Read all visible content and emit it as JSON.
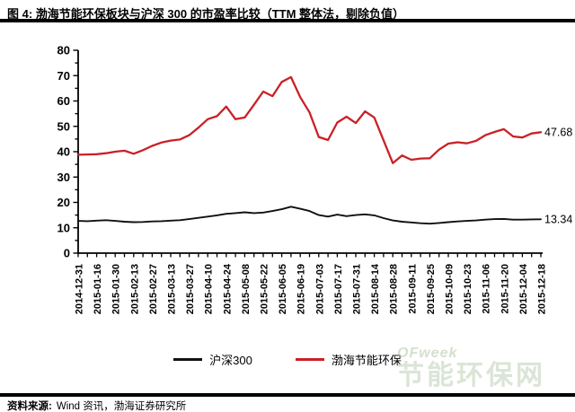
{
  "figure": {
    "title": "图 4: 渤海节能环保板块与沪深 300 的市盈率比较（TTM 整体法，剔除负值）",
    "source_label": "资料来源:",
    "source_text": "Wind 资讯，渤海证券研究所"
  },
  "watermark": {
    "brand": "OFweek",
    "site": "节能环保网"
  },
  "legend": [
    {
      "label": "沪深300",
      "color": "#111111"
    },
    {
      "label": "渤海节能环保",
      "color": "#cb2026"
    }
  ],
  "end_labels": {
    "bohai": "47.68",
    "csi300": "13.34"
  },
  "colors": {
    "axis": "#000000",
    "csi300": "#111111",
    "bohai": "#cb2026"
  },
  "chart_data": {
    "type": "line",
    "title": "渤海节能环保板块与沪深300的市盈率比较（TTM整体法，剔除负值）",
    "ylim": [
      0,
      80
    ],
    "y_ticks": [
      0,
      10,
      20,
      30,
      40,
      50,
      60,
      70,
      80
    ],
    "grid": false,
    "legend_position": "bottom",
    "x": [
      "2014-12-31",
      "2015-01-09",
      "2015-01-16",
      "2015-01-23",
      "2015-01-30",
      "2015-02-06",
      "2015-02-13",
      "2015-02-20",
      "2015-02-27",
      "2015-03-06",
      "2015-03-13",
      "2015-03-20",
      "2015-03-27",
      "2015-04-03",
      "2015-04-10",
      "2015-04-17",
      "2015-04-24",
      "2015-05-01",
      "2015-05-08",
      "2015-05-15",
      "2015-05-22",
      "2015-05-29",
      "2015-06-05",
      "2015-06-12",
      "2015-06-19",
      "2015-06-26",
      "2015-07-03",
      "2015-07-10",
      "2015-07-17",
      "2015-07-24",
      "2015-07-31",
      "2015-08-07",
      "2015-08-14",
      "2015-08-21",
      "2015-08-28",
      "2015-09-04",
      "2015-09-11",
      "2015-09-18",
      "2015-09-25",
      "2015-10-02",
      "2015-10-09",
      "2015-10-16",
      "2015-10-23",
      "2015-10-30",
      "2015-11-06",
      "2015-11-13",
      "2015-11-20",
      "2015-11-27",
      "2015-12-04",
      "2015-12-11",
      "2015-12-18"
    ],
    "x_tick_labels": [
      "2014-12-31",
      "2015-01-16",
      "2015-01-30",
      "2015-02-13",
      "2015-02-27",
      "2015-03-13",
      "2015-03-27",
      "2015-04-10",
      "2015-04-24",
      "2015-05-08",
      "2015-05-22",
      "2015-06-05",
      "2015-06-19",
      "2015-07-03",
      "2015-07-17",
      "2015-07-31",
      "2015-08-14",
      "2015-08-28",
      "2015-09-11",
      "2015-09-25",
      "2015-10-09",
      "2015-10-23",
      "2015-11-06",
      "2015-11-20",
      "2015-12-04",
      "2015-12-18"
    ],
    "series": [
      {
        "name": "沪深300",
        "color": "#111111",
        "end_label": "13.34",
        "values": [
          12.7,
          12.6,
          12.8,
          13.0,
          12.7,
          12.4,
          12.2,
          12.3,
          12.5,
          12.6,
          12.8,
          13.0,
          13.4,
          13.9,
          14.4,
          14.9,
          15.5,
          15.8,
          16.1,
          15.8,
          16.0,
          16.6,
          17.3,
          18.3,
          17.5,
          16.6,
          15.0,
          14.4,
          15.2,
          14.6,
          15.0,
          15.3,
          14.9,
          13.8,
          12.9,
          12.4,
          12.1,
          11.8,
          11.6,
          11.9,
          12.2,
          12.5,
          12.7,
          12.9,
          13.2,
          13.4,
          13.5,
          13.2,
          13.2,
          13.3,
          13.34
        ]
      },
      {
        "name": "渤海节能环保",
        "color": "#cb2026",
        "end_label": "47.68",
        "values": [
          38.8,
          38.9,
          39.0,
          39.4,
          40.0,
          40.4,
          39.2,
          40.6,
          42.3,
          43.6,
          44.4,
          44.8,
          46.5,
          49.5,
          52.8,
          54.0,
          57.8,
          52.8,
          53.5,
          58.5,
          63.7,
          61.9,
          67.5,
          69.4,
          61.5,
          55.5,
          45.8,
          44.6,
          51.5,
          53.8,
          51.3,
          55.9,
          53.5,
          44.5,
          35.5,
          38.5,
          36.8,
          37.3,
          37.4,
          40.8,
          43.2,
          43.7,
          43.3,
          44.3,
          46.5,
          47.8,
          48.9,
          46.0,
          45.6,
          47.2,
          47.68
        ]
      }
    ]
  }
}
